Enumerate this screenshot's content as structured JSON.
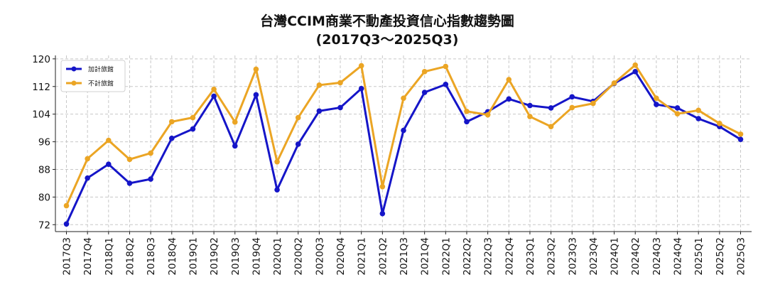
{
  "chart_data": {
    "type": "line",
    "title": "台灣CCIM商業不動產投資信心指數趨勢圖",
    "subtitle": "(2017Q3～2025Q3)",
    "xlabel": "",
    "ylabel": "",
    "ylim": [
      70,
      121
    ],
    "yticks": [
      72,
      80,
      88,
      96,
      104,
      112,
      120
    ],
    "grid": true,
    "legend_position": "top-left",
    "categories": [
      "2017Q3",
      "2017Q4",
      "2018Q1",
      "2018Q2",
      "2018Q3",
      "2018Q4",
      "2019Q1",
      "2019Q2",
      "2019Q3",
      "2019Q4",
      "2020Q1",
      "2020Q2",
      "2020Q3",
      "2020Q4",
      "2021Q1",
      "2021Q2",
      "2021Q3",
      "2021Q4",
      "2022Q1",
      "2022Q2",
      "2022Q3",
      "2022Q4",
      "2023Q1",
      "2023Q2",
      "2023Q3",
      "2023Q4",
      "2024Q1",
      "2024Q2",
      "2024Q3",
      "2024Q4",
      "2025Q1",
      "2025Q2",
      "2025Q3"
    ],
    "series": [
      {
        "name": "加計旅館",
        "color": "#1515c8",
        "values": [
          72.2,
          85.5,
          89.5,
          84.0,
          85.2,
          97.0,
          99.7,
          109.2,
          94.8,
          109.6,
          82.1,
          95.3,
          104.9,
          105.9,
          111.4,
          75.2,
          99.3,
          110.3,
          112.6,
          101.8,
          104.7,
          108.4,
          106.5,
          105.8,
          109.0,
          107.7,
          112.9,
          116.3,
          106.8,
          105.8,
          102.7,
          100.4,
          96.7
        ]
      },
      {
        "name": "不計旅館",
        "color": "#eba524",
        "values": [
          77.5,
          91.1,
          96.4,
          90.9,
          92.7,
          101.8,
          103.0,
          111.2,
          101.7,
          117.0,
          90.2,
          103.0,
          112.4,
          113.1,
          118.0,
          83.0,
          108.6,
          116.3,
          117.8,
          104.8,
          103.8,
          114.0,
          103.3,
          100.4,
          105.9,
          107.1,
          113.0,
          118.2,
          108.6,
          104.1,
          105.1,
          101.3,
          98.2
        ]
      }
    ]
  }
}
